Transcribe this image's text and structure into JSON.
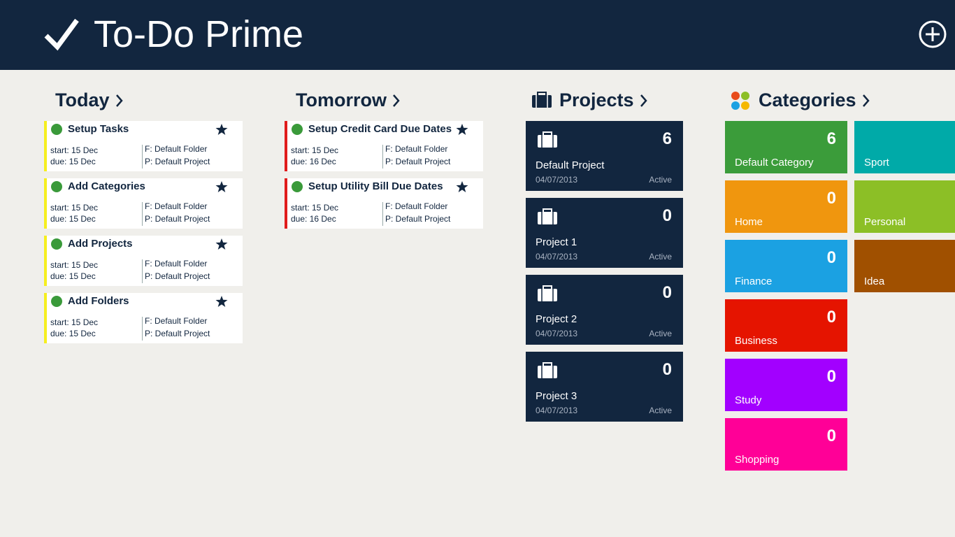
{
  "header": {
    "title": "To-Do Prime"
  },
  "today": {
    "title": "Today",
    "accent": "#f5ee1f",
    "tasks": [
      {
        "title": "Setup Tasks",
        "start": "start: 15 Dec",
        "due": "due: 15 Dec",
        "folder": "F: Default Folder",
        "project": "P: Default Project"
      },
      {
        "title": "Add Categories",
        "start": "start: 15 Dec",
        "due": "due: 15 Dec",
        "folder": "F: Default Folder",
        "project": "P: Default Project"
      },
      {
        "title": "Add Projects",
        "start": "start: 15 Dec",
        "due": "due: 15 Dec",
        "folder": "F: Default Folder",
        "project": "P: Default Project"
      },
      {
        "title": "Add Folders",
        "start": "start: 15 Dec",
        "due": "due: 15 Dec",
        "folder": "F: Default Folder",
        "project": "P: Default Project"
      }
    ]
  },
  "tomorrow": {
    "title": "Tomorrow",
    "accent": "#e01c1c",
    "tasks": [
      {
        "title": "Setup Credit Card Due Dates",
        "start": "start: 15 Dec",
        "due": "due: 16 Dec",
        "folder": "F: Default Folder",
        "project": "P: Default Project"
      },
      {
        "title": "Setup Utility Bill Due Dates",
        "start": "start: 15 Dec",
        "due": "due: 16 Dec",
        "folder": "F: Default Folder",
        "project": "P: Default Project"
      }
    ]
  },
  "projects": {
    "title": "Projects",
    "items": [
      {
        "name": "Default Project",
        "count": 6,
        "date": "04/07/2013",
        "status": "Active"
      },
      {
        "name": "Project 1",
        "count": 0,
        "date": "04/07/2013",
        "status": "Active"
      },
      {
        "name": "Project 2",
        "count": 0,
        "date": "04/07/2013",
        "status": "Active"
      },
      {
        "name": "Project 3",
        "count": 0,
        "date": "04/07/2013",
        "status": "Active"
      }
    ]
  },
  "categories": {
    "title": "Categories",
    "columns": [
      [
        {
          "name": "Default Category",
          "count": 6,
          "color": "#3b9c3a"
        },
        {
          "name": "Home",
          "count": 0,
          "color": "#f0960e"
        },
        {
          "name": "Finance",
          "count": 0,
          "color": "#1ba1e2"
        },
        {
          "name": "Business",
          "count": 0,
          "color": "#e51400"
        },
        {
          "name": "Study",
          "count": 0,
          "color": "#a200ff"
        },
        {
          "name": "Shopping",
          "count": 0,
          "color": "#ff0097"
        }
      ],
      [
        {
          "name": "Sport",
          "color": "#00aaa8"
        },
        {
          "name": "Personal",
          "color": "#8cbf26"
        },
        {
          "name": "Idea",
          "color": "#a05000"
        }
      ]
    ]
  }
}
